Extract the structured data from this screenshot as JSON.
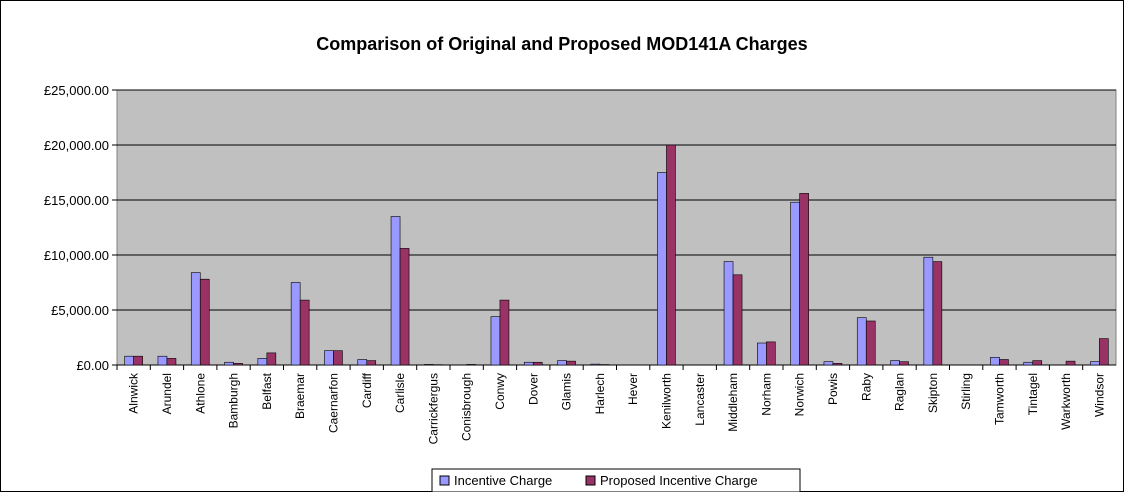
{
  "chart_data": {
    "type": "bar",
    "title": "Comparison of Original and Proposed MOD141A Charges",
    "xlabel": "",
    "ylabel": "",
    "ylim": [
      0,
      25000
    ],
    "yticks": [
      "£0.00",
      "£5,000.00",
      "£10,000.00",
      "£15,000.00",
      "£20,000.00",
      "£25,000.00"
    ],
    "ytick_values": [
      0,
      5000,
      10000,
      15000,
      20000,
      25000
    ],
    "grid": true,
    "legend_position": "bottom",
    "categories": [
      "Alnwick",
      "Arundel",
      "Athlone",
      "Bamburgh",
      "Belfast",
      "Braemar",
      "Caernarfon",
      "Cardiff",
      "Carlisle",
      "Carrickfergus",
      "Conisbrough",
      "Conwy",
      "Dover",
      "Glamis",
      "Harlech",
      "Hever",
      "Kenilworth",
      "Lancaster",
      "Middleham",
      "Norham",
      "Norwich",
      "Powis",
      "Raby",
      "Raglan",
      "Skipton",
      "Stirling",
      "Tamworth",
      "Tintagel",
      "Warkworth",
      "Windsor"
    ],
    "series": [
      {
        "name": "Incentive Charge",
        "color": "#9999ff",
        "values": [
          800,
          800,
          8400,
          250,
          600,
          7500,
          1300,
          500,
          13500,
          50,
          0,
          4400,
          250,
          400,
          80,
          0,
          17500,
          0,
          9400,
          2000,
          14800,
          300,
          4300,
          400,
          9800,
          0,
          700,
          250,
          0,
          300
        ]
      },
      {
        "name": "Proposed Incentive Charge",
        "color": "#993366",
        "values": [
          800,
          600,
          7800,
          150,
          1100,
          5900,
          1300,
          400,
          10600,
          30,
          50,
          5900,
          250,
          350,
          40,
          0,
          20000,
          0,
          8200,
          2100,
          15600,
          150,
          4000,
          300,
          9400,
          0,
          500,
          400,
          350,
          2400
        ]
      }
    ]
  }
}
